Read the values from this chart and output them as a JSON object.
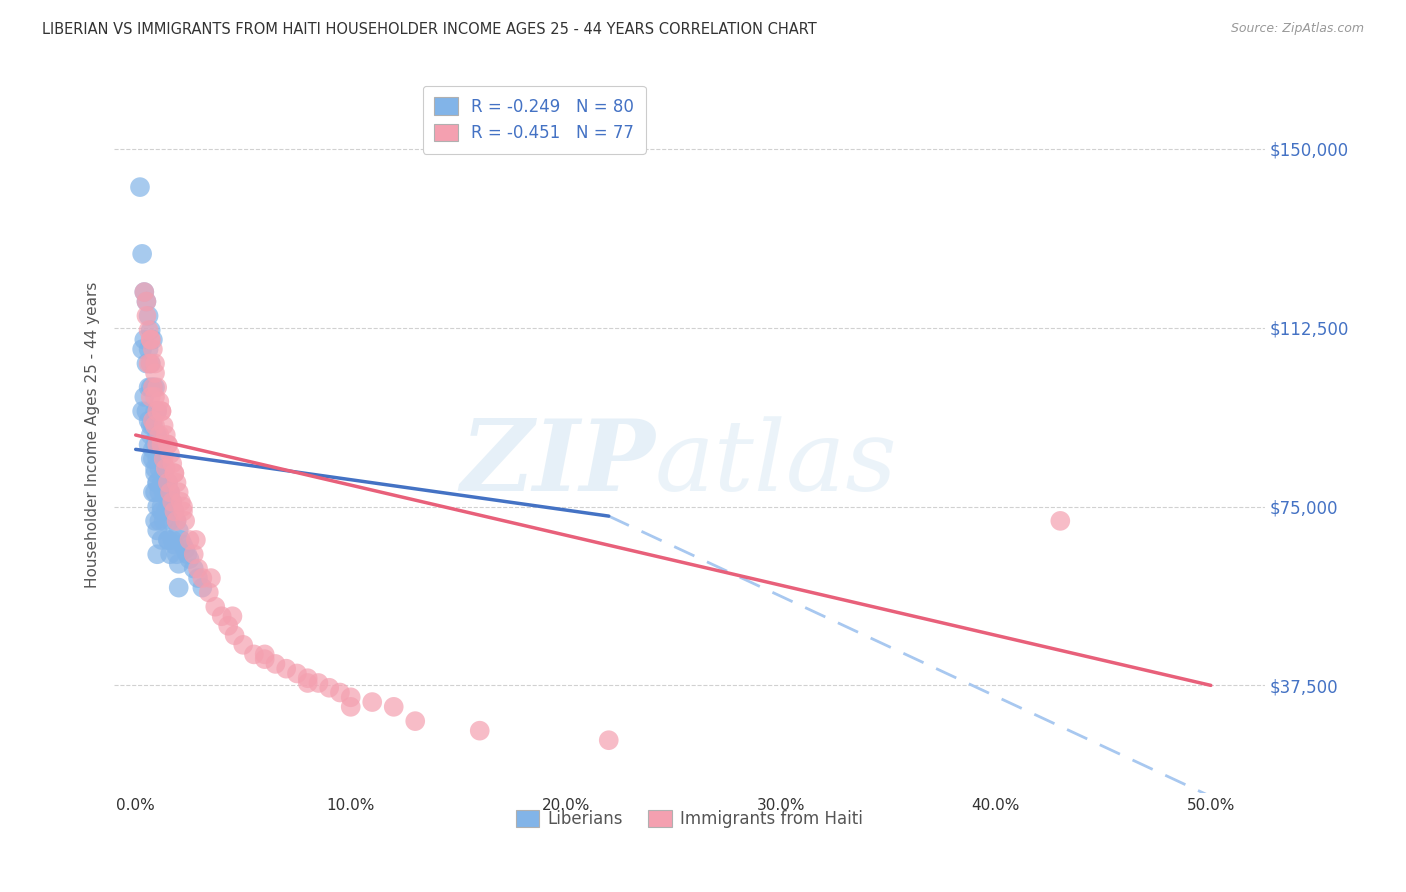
{
  "title": "LIBERIAN VS IMMIGRANTS FROM HAITI HOUSEHOLDER INCOME AGES 25 - 44 YEARS CORRELATION CHART",
  "source": "Source: ZipAtlas.com",
  "ylabel": "Householder Income Ages 25 - 44 years",
  "ytick_labels": [
    "$37,500",
    "$75,000",
    "$112,500",
    "$150,000"
  ],
  "ytick_vals": [
    37500,
    75000,
    112500,
    150000
  ],
  "xlabel_ticks": [
    "0.0%",
    "10.0%",
    "20.0%",
    "30.0%",
    "40.0%",
    "50.0%"
  ],
  "xlabel_vals": [
    0.0,
    0.1,
    0.2,
    0.3,
    0.4,
    0.5
  ],
  "ymin": 15000,
  "ymax": 165000,
  "xmin": -0.01,
  "xmax": 0.525,
  "legend_r1_text": "R = -0.249",
  "legend_r1_n": "N = 80",
  "legend_r2_text": "R = -0.451",
  "legend_r2_n": "N = 77",
  "color_liberian": "#82b4e8",
  "color_haiti": "#f4a0b0",
  "color_trendline_liberian_solid": "#4472c4",
  "color_trendline_liberian_dash": "#a8c8f0",
  "color_trendline_haiti": "#e8607a",
  "liberian_x": [
    0.002,
    0.003,
    0.003,
    0.004,
    0.004,
    0.005,
    0.005,
    0.005,
    0.006,
    0.006,
    0.006,
    0.006,
    0.007,
    0.007,
    0.007,
    0.007,
    0.007,
    0.008,
    0.008,
    0.008,
    0.008,
    0.008,
    0.009,
    0.009,
    0.009,
    0.009,
    0.009,
    0.009,
    0.01,
    0.01,
    0.01,
    0.01,
    0.01,
    0.01,
    0.01,
    0.011,
    0.011,
    0.011,
    0.011,
    0.012,
    0.012,
    0.012,
    0.012,
    0.013,
    0.013,
    0.013,
    0.014,
    0.014,
    0.015,
    0.015,
    0.015,
    0.016,
    0.016,
    0.016,
    0.017,
    0.017,
    0.018,
    0.018,
    0.019,
    0.019,
    0.02,
    0.02,
    0.021,
    0.022,
    0.023,
    0.024,
    0.025,
    0.027,
    0.029,
    0.031,
    0.003,
    0.004,
    0.006,
    0.007,
    0.008,
    0.009,
    0.01,
    0.012,
    0.015,
    0.02
  ],
  "liberian_y": [
    142000,
    128000,
    95000,
    120000,
    110000,
    118000,
    105000,
    95000,
    115000,
    108000,
    100000,
    88000,
    112000,
    105000,
    100000,
    92000,
    85000,
    110000,
    100000,
    92000,
    85000,
    78000,
    100000,
    95000,
    88000,
    82000,
    78000,
    72000,
    95000,
    90000,
    85000,
    80000,
    75000,
    70000,
    65000,
    88000,
    83000,
    78000,
    72000,
    85000,
    80000,
    75000,
    68000,
    82000,
    78000,
    72000,
    80000,
    74000,
    80000,
    75000,
    68000,
    78000,
    72000,
    65000,
    76000,
    68000,
    74000,
    67000,
    72000,
    65000,
    70000,
    63000,
    68000,
    67000,
    66000,
    65000,
    64000,
    62000,
    60000,
    58000,
    108000,
    98000,
    93000,
    90000,
    87000,
    83000,
    80000,
    74000,
    68000,
    58000
  ],
  "haiti_x": [
    0.004,
    0.005,
    0.006,
    0.006,
    0.007,
    0.007,
    0.007,
    0.008,
    0.008,
    0.008,
    0.009,
    0.009,
    0.009,
    0.01,
    0.01,
    0.01,
    0.011,
    0.011,
    0.012,
    0.012,
    0.013,
    0.013,
    0.014,
    0.014,
    0.015,
    0.015,
    0.016,
    0.016,
    0.017,
    0.017,
    0.018,
    0.018,
    0.019,
    0.019,
    0.02,
    0.021,
    0.022,
    0.023,
    0.025,
    0.027,
    0.029,
    0.031,
    0.034,
    0.037,
    0.04,
    0.043,
    0.046,
    0.05,
    0.055,
    0.06,
    0.065,
    0.07,
    0.075,
    0.08,
    0.085,
    0.09,
    0.095,
    0.1,
    0.11,
    0.12,
    0.005,
    0.007,
    0.009,
    0.012,
    0.015,
    0.018,
    0.022,
    0.028,
    0.035,
    0.045,
    0.06,
    0.08,
    0.1,
    0.13,
    0.16,
    0.22,
    0.43
  ],
  "haiti_y": [
    120000,
    115000,
    112000,
    105000,
    110000,
    105000,
    98000,
    108000,
    100000,
    93000,
    105000,
    98000,
    92000,
    100000,
    95000,
    88000,
    97000,
    90000,
    95000,
    88000,
    92000,
    85000,
    90000,
    83000,
    88000,
    80000,
    86000,
    78000,
    84000,
    76000,
    82000,
    74000,
    80000,
    72000,
    78000,
    76000,
    74000,
    72000,
    68000,
    65000,
    62000,
    60000,
    57000,
    54000,
    52000,
    50000,
    48000,
    46000,
    44000,
    43000,
    42000,
    41000,
    40000,
    39000,
    38000,
    37000,
    36000,
    35000,
    34000,
    33000,
    118000,
    110000,
    103000,
    95000,
    88000,
    82000,
    75000,
    68000,
    60000,
    52000,
    44000,
    38000,
    33000,
    30000,
    28000,
    26000,
    72000
  ]
}
